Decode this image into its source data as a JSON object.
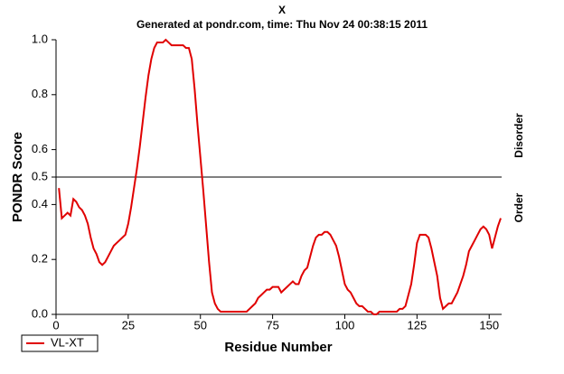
{
  "chart_data": {
    "type": "line",
    "title": "X",
    "subtitle": "Generated at pondr.com, time: Thu Nov 24 00:38:15 2011",
    "x_label": "Residue Number",
    "y_label": "PONDR Score",
    "region_labels": [
      "Disorder",
      "Order"
    ],
    "threshold": 0.5,
    "xlim": [
      0,
      154
    ],
    "ylim": [
      0,
      1
    ],
    "xticks": [
      0,
      25,
      50,
      75,
      100,
      125,
      150
    ],
    "yticks": [
      {
        "value": 0,
        "label": "0.0"
      },
      0.2,
      0.4,
      0.5,
      0.6,
      0.8,
      {
        "value": 1,
        "label": "1.0"
      }
    ],
    "legend": "bottom-left",
    "x": [
      1,
      2,
      3,
      4,
      5,
      6,
      7,
      8,
      9,
      10,
      11,
      12,
      13,
      14,
      15,
      16,
      17,
      18,
      19,
      20,
      21,
      22,
      23,
      24,
      25,
      26,
      27,
      28,
      29,
      30,
      31,
      32,
      33,
      34,
      35,
      36,
      37,
      38,
      39,
      40,
      41,
      42,
      43,
      44,
      45,
      46,
      47,
      48,
      49,
      50,
      51,
      52,
      53,
      54,
      55,
      56,
      57,
      58,
      59,
      60,
      61,
      62,
      63,
      64,
      65,
      66,
      67,
      68,
      69,
      70,
      71,
      72,
      73,
      74,
      75,
      76,
      77,
      78,
      79,
      80,
      81,
      82,
      83,
      84,
      85,
      86,
      87,
      88,
      89,
      90,
      91,
      92,
      93,
      94,
      95,
      96,
      97,
      98,
      99,
      100,
      101,
      102,
      103,
      104,
      105,
      106,
      107,
      108,
      109,
      110,
      111,
      112,
      113,
      114,
      115,
      116,
      117,
      118,
      119,
      120,
      121,
      122,
      123,
      124,
      125,
      126,
      127,
      128,
      129,
      130,
      131,
      132,
      133,
      134,
      135,
      136,
      137,
      138,
      139,
      140,
      141,
      142,
      143,
      144,
      145,
      146,
      147,
      148,
      149,
      150,
      151,
      152,
      153,
      154
    ],
    "series": [
      {
        "name": "VL-XT",
        "color": "#e00000",
        "values": [
          0.46,
          0.35,
          0.36,
          0.37,
          0.36,
          0.42,
          0.41,
          0.39,
          0.38,
          0.36,
          0.33,
          0.28,
          0.24,
          0.22,
          0.19,
          0.18,
          0.19,
          0.21,
          0.23,
          0.25,
          0.26,
          0.27,
          0.28,
          0.29,
          0.33,
          0.39,
          0.46,
          0.53,
          0.61,
          0.7,
          0.79,
          0.87,
          0.93,
          0.97,
          0.99,
          0.99,
          0.99,
          1.0,
          0.99,
          0.98,
          0.98,
          0.98,
          0.98,
          0.98,
          0.97,
          0.97,
          0.93,
          0.82,
          0.69,
          0.57,
          0.45,
          0.32,
          0.19,
          0.08,
          0.04,
          0.02,
          0.01,
          0.01,
          0.01,
          0.01,
          0.01,
          0.01,
          0.01,
          0.01,
          0.01,
          0.01,
          0.02,
          0.03,
          0.04,
          0.06,
          0.07,
          0.08,
          0.09,
          0.09,
          0.1,
          0.1,
          0.1,
          0.08,
          0.09,
          0.1,
          0.11,
          0.12,
          0.11,
          0.11,
          0.14,
          0.16,
          0.17,
          0.21,
          0.25,
          0.28,
          0.29,
          0.29,
          0.3,
          0.3,
          0.29,
          0.27,
          0.25,
          0.21,
          0.16,
          0.11,
          0.09,
          0.08,
          0.06,
          0.04,
          0.03,
          0.03,
          0.02,
          0.01,
          0.01,
          0,
          0,
          0.01,
          0.01,
          0.01,
          0.01,
          0.01,
          0.01,
          0.01,
          0.02,
          0.02,
          0.03,
          0.07,
          0.11,
          0.18,
          0.26,
          0.29,
          0.29,
          0.29,
          0.28,
          0.24,
          0.19,
          0.14,
          0.06,
          0.02,
          0.03,
          0.04,
          0.04,
          0.06,
          0.08,
          0.11,
          0.14,
          0.18,
          0.23,
          0.25,
          0.27,
          0.29,
          0.31,
          0.32,
          0.31,
          0.29,
          0.24,
          0.28,
          0.32,
          0.35
        ]
      }
    ]
  }
}
